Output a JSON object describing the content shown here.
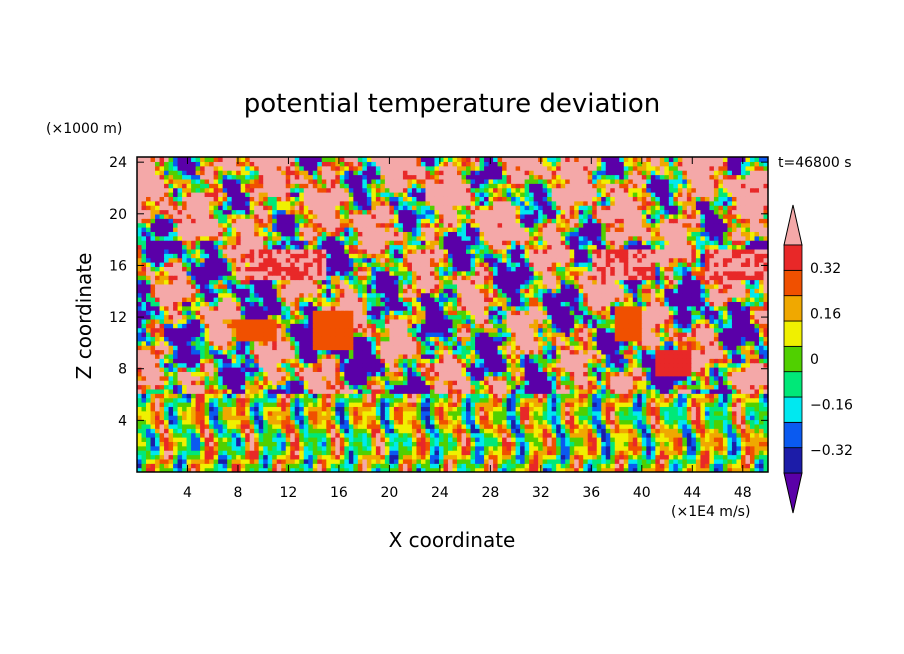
{
  "chart_data": {
    "type": "heatmap",
    "title": "potential temperature deviation",
    "xlabel": "X coordinate",
    "ylabel": "Z coordinate",
    "x_unit": "(×1E4 m/s)",
    "y_unit": "(×1000 m)",
    "time_label": "t=46800 s",
    "xlim": [
      0,
      50
    ],
    "ylim": [
      0,
      24.4
    ],
    "x_ticks": [
      4,
      8,
      12,
      16,
      20,
      24,
      28,
      32,
      36,
      40,
      44,
      48
    ],
    "y_ticks": [
      4,
      8,
      12,
      16,
      20,
      24
    ],
    "x_tick_labels": [
      "4",
      "8",
      "12",
      "16",
      "20",
      "24",
      "28",
      "32",
      "36",
      "40",
      "44",
      "48"
    ],
    "y_tick_labels": [
      "4",
      "8",
      "12",
      "16",
      "20",
      "24"
    ],
    "colorbar": {
      "levels": [
        -0.4,
        -0.32,
        -0.24,
        -0.16,
        -0.08,
        0,
        0.08,
        0.16,
        0.24,
        0.32,
        0.4
      ],
      "tick_values": [
        0.32,
        0.16,
        0,
        -0.16,
        -0.32
      ],
      "tick_labels": [
        "0.32",
        "0.16",
        "0",
        "−0.16",
        "−0.32"
      ],
      "colors": [
        "#5a00a8",
        "#1c1ca8",
        "#0a5af0",
        "#00e8f0",
        "#00e878",
        "#50d000",
        "#f0f000",
        "#f0a800",
        "#f05000",
        "#e82828",
        "#f4a8a8"
      ],
      "extend": "both"
    },
    "features": [
      {
        "x": [
          9,
          15
        ],
        "z": [
          14.8,
          17.2
        ],
        "value_range": [
          0.24,
          0.4
        ]
      },
      {
        "x": [
          36,
          41
        ],
        "z": [
          14.8,
          17.2
        ],
        "value_range": [
          0.24,
          0.4
        ]
      },
      {
        "x": [
          45,
          50
        ],
        "z": [
          14.8,
          17.2
        ],
        "value_range": [
          0.24,
          0.4
        ]
      },
      {
        "x": [
          8,
          11
        ],
        "z": [
          10.0,
          12.0
        ],
        "value_range": [
          0.16,
          0.24
        ]
      },
      {
        "x": [
          14,
          17
        ],
        "z": [
          9.5,
          12.5
        ],
        "value_range": [
          0.16,
          0.24
        ]
      },
      {
        "x": [
          38,
          40
        ],
        "z": [
          10.0,
          13.0
        ],
        "value_range": [
          0.16,
          0.24
        ]
      },
      {
        "x": [
          41,
          44
        ],
        "z": [
          7.5,
          9.5
        ],
        "value_range": [
          0.24,
          0.32
        ]
      }
    ]
  }
}
